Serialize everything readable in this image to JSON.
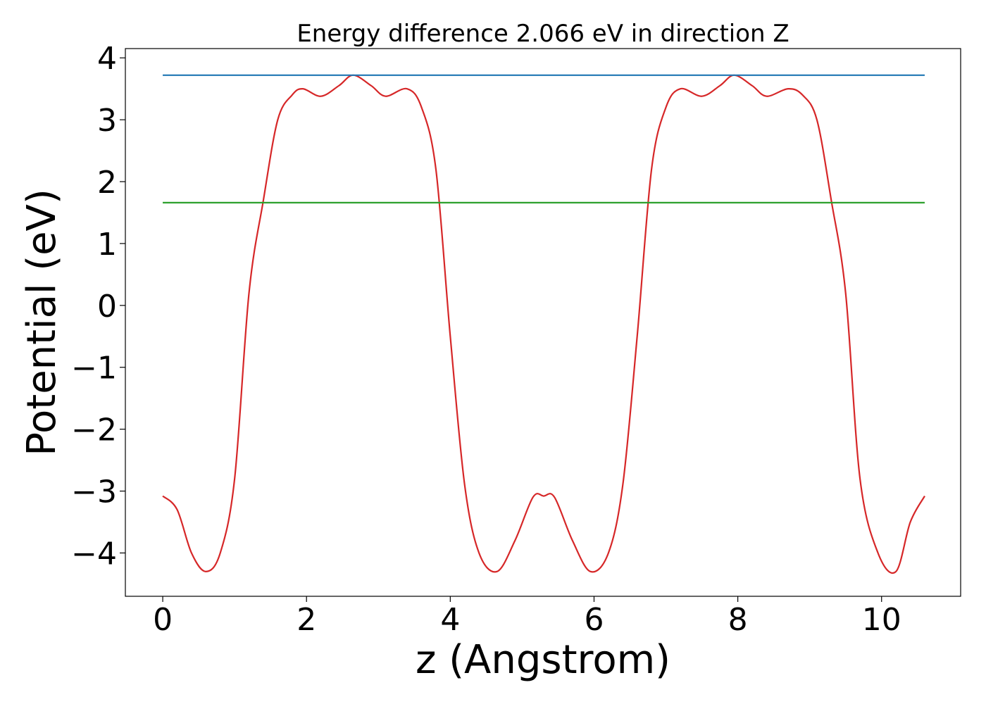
{
  "chart_data": {
    "type": "line",
    "title": "Energy difference 2.066 eV in direction Z",
    "xlabel": "z (Angstrom)",
    "ylabel": "Potential (eV)",
    "xlim": [
      -0.52,
      11.1
    ],
    "ylim": [
      -4.7,
      4.15
    ],
    "xticks": [
      0,
      2,
      4,
      6,
      8,
      10
    ],
    "xtick_labels": [
      "0",
      "2",
      "4",
      "6",
      "8",
      "10"
    ],
    "yticks": [
      -4,
      -3,
      -2,
      -1,
      0,
      1,
      2,
      3,
      4
    ],
    "ytick_labels": [
      "−4",
      "−3",
      "−2",
      "−1",
      "0",
      "1",
      "2",
      "3",
      "4"
    ],
    "grid": false,
    "legend": "none",
    "series": [
      {
        "color": "#d62728",
        "x": [
          0.0,
          0.2,
          0.4,
          0.6,
          0.8,
          1.0,
          1.2,
          1.4,
          1.6,
          1.8,
          1.95,
          2.2,
          2.45,
          2.65,
          2.9,
          3.1,
          3.4,
          3.6,
          3.8,
          4.0,
          4.2,
          4.4,
          4.65,
          4.9,
          5.15,
          5.3,
          5.45,
          5.7,
          5.95,
          6.2,
          6.4,
          6.6,
          6.8,
          7.0,
          7.2,
          7.5,
          7.75,
          7.95,
          8.2,
          8.4,
          8.7,
          8.9,
          9.1,
          9.3,
          9.5,
          9.7,
          9.95,
          10.2,
          10.4,
          10.6
        ],
        "y": [
          -3.08,
          -3.3,
          -4.0,
          -4.3,
          -4.0,
          -2.8,
          0.2,
          1.7,
          3.0,
          3.4,
          3.5,
          3.38,
          3.55,
          3.72,
          3.55,
          3.38,
          3.5,
          3.2,
          2.2,
          -0.5,
          -2.9,
          -4.0,
          -4.3,
          -3.8,
          -3.1,
          -3.08,
          -3.1,
          -3.8,
          -4.3,
          -4.0,
          -2.9,
          -0.5,
          2.2,
          3.2,
          3.5,
          3.38,
          3.55,
          3.72,
          3.55,
          3.38,
          3.5,
          3.4,
          3.0,
          1.7,
          0.2,
          -2.8,
          -4.0,
          -4.3,
          -3.5,
          -3.08
        ]
      },
      {
        "color": "#1f77b4",
        "x": [
          0.0,
          10.6
        ],
        "y": [
          3.72,
          3.72
        ]
      },
      {
        "color": "#2ca02c",
        "x": [
          0.0,
          10.6
        ],
        "y": [
          1.66,
          1.66
        ]
      }
    ]
  }
}
